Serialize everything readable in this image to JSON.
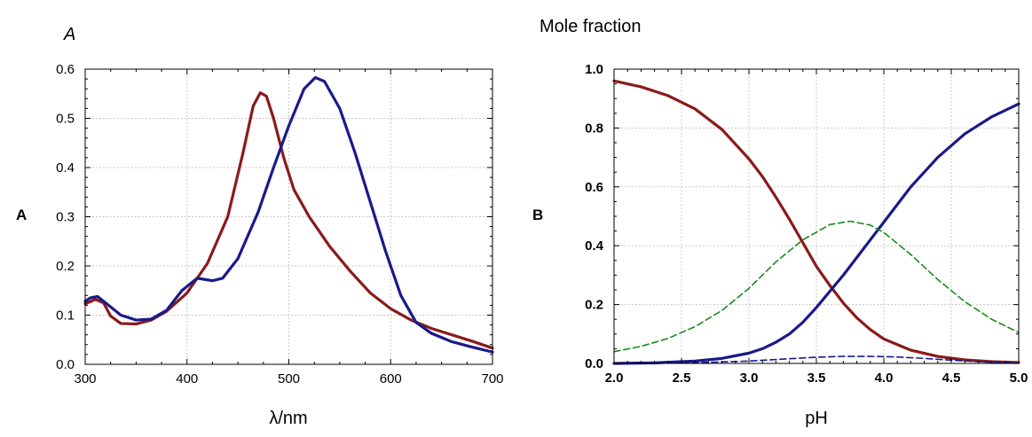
{
  "panels": [
    {
      "panel_label": "A",
      "corner_label": "A",
      "xlabel": "λ/nm",
      "ylabel": "",
      "chart_data": {
        "type": "line",
        "xlim": [
          300,
          700
        ],
        "ylim": [
          0.0,
          0.6
        ],
        "xticks": [
          300,
          400,
          500,
          600,
          700
        ],
        "xtick_labels": [
          "300",
          "400",
          "500",
          "600",
          "700"
        ],
        "yticks": [
          0.0,
          0.1,
          0.2,
          0.3,
          0.4,
          0.5,
          0.6
        ],
        "ytick_labels": [
          "0.0",
          "0.1",
          "0.2",
          "0.3",
          "0.4",
          "0.5",
          "0.6"
        ],
        "grid": true,
        "series": [
          {
            "color": "#8b1a1a",
            "style": "solid",
            "points": [
              [
                300,
                0.123
              ],
              [
                310,
                0.132
              ],
              [
                318,
                0.125
              ],
              [
                325,
                0.098
              ],
              [
                335,
                0.083
              ],
              [
                350,
                0.082
              ],
              [
                365,
                0.09
              ],
              [
                380,
                0.108
              ],
              [
                400,
                0.145
              ],
              [
                420,
                0.205
              ],
              [
                440,
                0.3
              ],
              [
                455,
                0.43
              ],
              [
                465,
                0.525
              ],
              [
                472,
                0.552
              ],
              [
                478,
                0.545
              ],
              [
                485,
                0.5
              ],
              [
                495,
                0.42
              ],
              [
                505,
                0.355
              ],
              [
                520,
                0.3
              ],
              [
                540,
                0.24
              ],
              [
                560,
                0.19
              ],
              [
                580,
                0.145
              ],
              [
                600,
                0.113
              ],
              [
                620,
                0.09
              ],
              [
                640,
                0.073
              ],
              [
                660,
                0.06
              ],
              [
                680,
                0.047
              ],
              [
                700,
                0.033
              ]
            ]
          },
          {
            "color": "#1a1a8b",
            "style": "solid",
            "points": [
              [
                300,
                0.128
              ],
              [
                305,
                0.135
              ],
              [
                312,
                0.138
              ],
              [
                320,
                0.125
              ],
              [
                335,
                0.1
              ],
              [
                350,
                0.09
              ],
              [
                365,
                0.092
              ],
              [
                380,
                0.11
              ],
              [
                395,
                0.15
              ],
              [
                410,
                0.175
              ],
              [
                425,
                0.17
              ],
              [
                435,
                0.175
              ],
              [
                450,
                0.215
              ],
              [
                470,
                0.31
              ],
              [
                485,
                0.4
              ],
              [
                500,
                0.485
              ],
              [
                515,
                0.56
              ],
              [
                526,
                0.583
              ],
              [
                535,
                0.575
              ],
              [
                550,
                0.52
              ],
              [
                565,
                0.43
              ],
              [
                580,
                0.33
              ],
              [
                595,
                0.23
              ],
              [
                610,
                0.14
              ],
              [
                625,
                0.085
              ],
              [
                640,
                0.063
              ],
              [
                660,
                0.046
              ],
              [
                680,
                0.035
              ],
              [
                700,
                0.025
              ]
            ]
          }
        ]
      }
    },
    {
      "panel_label": "B",
      "corner_label": "Mole fraction",
      "xlabel": "pH",
      "ylabel": "",
      "chart_data": {
        "type": "line",
        "xlim": [
          2.0,
          5.0
        ],
        "ylim": [
          0.0,
          1.0
        ],
        "xticks": [
          2.0,
          2.5,
          3.0,
          3.5,
          4.0,
          4.5,
          5.0
        ],
        "xtick_labels": [
          "2.0",
          "2.5",
          "3.0",
          "3.5",
          "4.0",
          "4.5",
          "5.0"
        ],
        "yticks": [
          0.0,
          0.2,
          0.4,
          0.6,
          0.8,
          1.0
        ],
        "ytick_labels": [
          "0.0",
          "0.2",
          "0.4",
          "0.6",
          "0.8",
          "1.0"
        ],
        "grid": true,
        "series": [
          {
            "color": "#8b1a1a",
            "style": "solid",
            "points": [
              [
                2.0,
                0.96
              ],
              [
                2.2,
                0.94
              ],
              [
                2.4,
                0.91
              ],
              [
                2.6,
                0.865
              ],
              [
                2.8,
                0.795
              ],
              [
                3.0,
                0.695
              ],
              [
                3.1,
                0.635
              ],
              [
                3.2,
                0.565
              ],
              [
                3.3,
                0.49
              ],
              [
                3.4,
                0.41
              ],
              [
                3.5,
                0.33
              ],
              [
                3.6,
                0.265
              ],
              [
                3.7,
                0.205
              ],
              [
                3.8,
                0.155
              ],
              [
                3.9,
                0.115
              ],
              [
                4.0,
                0.083
              ],
              [
                4.2,
                0.045
              ],
              [
                4.4,
                0.024
              ],
              [
                4.6,
                0.012
              ],
              [
                4.8,
                0.006
              ],
              [
                5.0,
                0.003
              ]
            ]
          },
          {
            "color": "#1a1a8b",
            "style": "solid",
            "points": [
              [
                2.0,
                0.0
              ],
              [
                2.3,
                0.002
              ],
              [
                2.6,
                0.008
              ],
              [
                2.8,
                0.017
              ],
              [
                3.0,
                0.035
              ],
              [
                3.1,
                0.05
              ],
              [
                3.2,
                0.072
              ],
              [
                3.3,
                0.1
              ],
              [
                3.4,
                0.14
              ],
              [
                3.5,
                0.19
              ],
              [
                3.6,
                0.245
              ],
              [
                3.7,
                0.3
              ],
              [
                3.8,
                0.36
              ],
              [
                3.9,
                0.42
              ],
              [
                4.0,
                0.48
              ],
              [
                4.2,
                0.6
              ],
              [
                4.4,
                0.7
              ],
              [
                4.6,
                0.78
              ],
              [
                4.8,
                0.838
              ],
              [
                5.0,
                0.882
              ]
            ]
          },
          {
            "color": "#1a8b1a",
            "style": "dashed",
            "points": [
              [
                2.0,
                0.04
              ],
              [
                2.2,
                0.058
              ],
              [
                2.4,
                0.085
              ],
              [
                2.6,
                0.125
              ],
              [
                2.8,
                0.18
              ],
              [
                3.0,
                0.255
              ],
              [
                3.2,
                0.345
              ],
              [
                3.4,
                0.42
              ],
              [
                3.6,
                0.472
              ],
              [
                3.75,
                0.483
              ],
              [
                3.9,
                0.47
              ],
              [
                4.0,
                0.445
              ],
              [
                4.2,
                0.37
              ],
              [
                4.4,
                0.285
              ],
              [
                4.6,
                0.21
              ],
              [
                4.8,
                0.15
              ],
              [
                5.0,
                0.105
              ]
            ]
          },
          {
            "color": "#1a1a8b",
            "style": "dashed",
            "points": [
              [
                2.0,
                0.0
              ],
              [
                2.5,
                0.001
              ],
              [
                3.0,
                0.008
              ],
              [
                3.3,
                0.016
              ],
              [
                3.5,
                0.021
              ],
              [
                3.7,
                0.024
              ],
              [
                3.9,
                0.024
              ],
              [
                4.1,
                0.022
              ],
              [
                4.3,
                0.017
              ],
              [
                4.5,
                0.011
              ],
              [
                4.7,
                0.006
              ],
              [
                5.0,
                0.002
              ]
            ]
          }
        ]
      }
    }
  ]
}
